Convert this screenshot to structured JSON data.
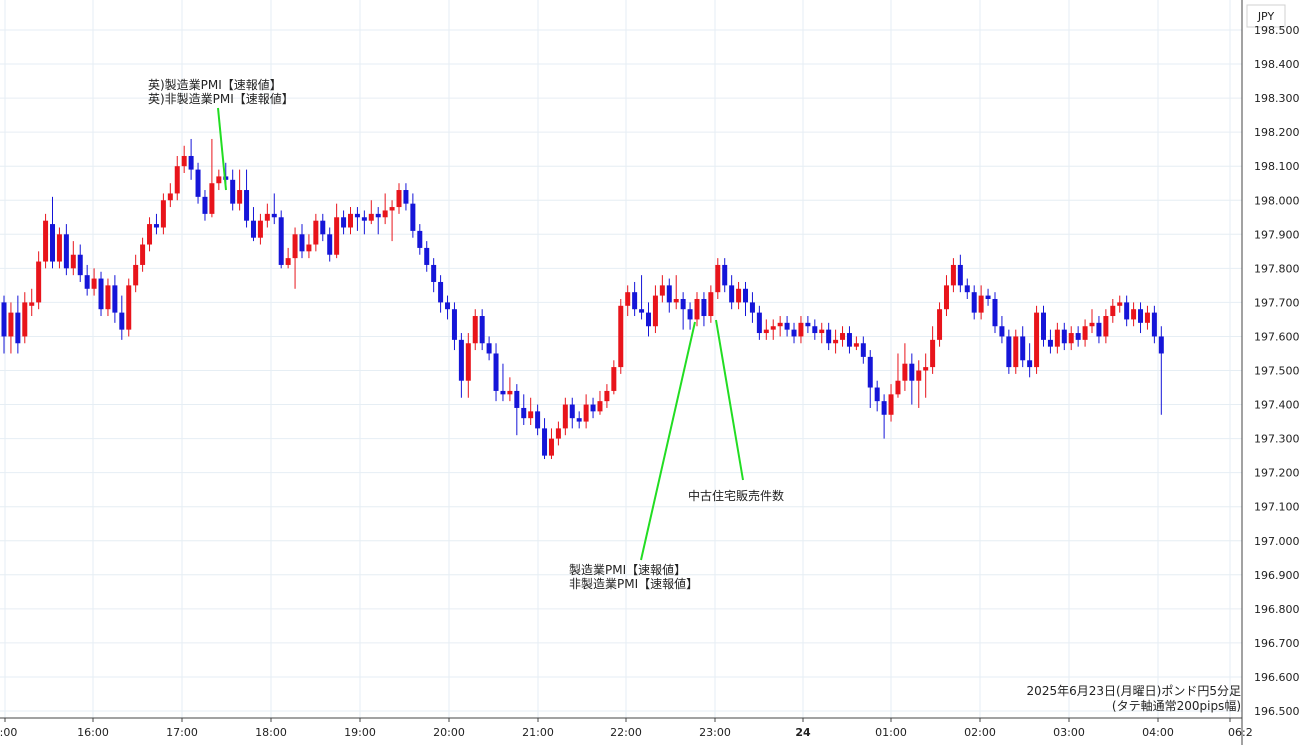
{
  "chart_data": {
    "type": "candlestick",
    "currency_label": "JPY",
    "ylim": [
      196.5,
      198.55
    ],
    "y_ticks": [
      "198.500",
      "198.400",
      "198.300",
      "198.200",
      "198.100",
      "198.000",
      "197.900",
      "197.800",
      "197.700",
      "197.600",
      "197.500",
      "197.400",
      "197.300",
      "197.200",
      "197.100",
      "197.000",
      "196.900",
      "196.800",
      "196.700",
      "196.600",
      "196.500"
    ],
    "x_ticks": [
      "5:00",
      "16:00",
      "17:00",
      "18:00",
      "19:00",
      "20:00",
      "21:00",
      "22:00",
      "23:00",
      "24",
      "01:00",
      "02:00",
      "03:00",
      "04:00",
      "06:2"
    ],
    "colors": {
      "up": "#e8141b",
      "down": "#1515d8",
      "annotation_line": "#22dd22",
      "grid": "#e6eef4",
      "axis": "#444444"
    },
    "candles": [
      [
        197.7,
        197.6,
        197.72,
        197.55
      ],
      [
        197.6,
        197.67,
        197.7,
        197.55
      ],
      [
        197.67,
        197.58,
        197.72,
        197.55
      ],
      [
        197.6,
        197.7,
        197.73,
        197.58
      ],
      [
        197.69,
        197.7,
        197.74,
        197.66
      ],
      [
        197.7,
        197.82,
        197.85,
        197.68
      ],
      [
        197.82,
        197.94,
        197.96,
        197.8
      ],
      [
        197.93,
        197.82,
        198.01,
        197.8
      ],
      [
        197.82,
        197.9,
        197.92,
        197.8
      ],
      [
        197.9,
        197.8,
        197.93,
        197.78
      ],
      [
        197.8,
        197.84,
        197.88,
        197.78
      ],
      [
        197.84,
        197.78,
        197.87,
        197.76
      ],
      [
        197.78,
        197.74,
        197.81,
        197.72
      ],
      [
        197.74,
        197.77,
        197.8,
        197.72
      ],
      [
        197.77,
        197.68,
        197.79,
        197.66
      ],
      [
        197.68,
        197.75,
        197.77,
        197.66
      ],
      [
        197.75,
        197.67,
        197.78,
        197.64
      ],
      [
        197.67,
        197.62,
        197.72,
        197.59
      ],
      [
        197.62,
        197.75,
        197.77,
        197.6
      ],
      [
        197.75,
        197.81,
        197.84,
        197.73
      ],
      [
        197.81,
        197.87,
        197.89,
        197.79
      ],
      [
        197.87,
        197.93,
        197.95,
        197.85
      ],
      [
        197.93,
        197.92,
        197.96,
        197.9
      ],
      [
        197.92,
        198.0,
        198.02,
        197.9
      ],
      [
        198.0,
        198.02,
        198.05,
        197.98
      ],
      [
        198.02,
        198.1,
        198.13,
        198.0
      ],
      [
        198.1,
        198.13,
        198.16,
        198.08
      ],
      [
        198.13,
        198.09,
        198.18,
        198.06
      ],
      [
        198.09,
        198.01,
        198.11,
        197.99
      ],
      [
        198.01,
        197.96,
        198.03,
        197.94
      ],
      [
        197.96,
        198.05,
        198.18,
        197.95
      ],
      [
        198.05,
        198.07,
        198.09,
        198.03
      ],
      [
        198.07,
        198.06,
        198.11,
        198.04
      ],
      [
        198.06,
        197.99,
        198.09,
        197.97
      ],
      [
        197.99,
        198.03,
        198.09,
        197.97
      ],
      [
        198.03,
        197.94,
        198.09,
        197.92
      ],
      [
        197.94,
        197.89,
        197.98,
        197.88
      ],
      [
        197.89,
        197.94,
        197.96,
        197.87
      ],
      [
        197.94,
        197.96,
        197.99,
        197.92
      ],
      [
        197.96,
        197.95,
        198.02,
        197.93
      ],
      [
        197.95,
        197.81,
        197.97,
        197.8
      ],
      [
        197.81,
        197.83,
        197.86,
        197.8
      ],
      [
        197.83,
        197.9,
        197.92,
        197.74
      ],
      [
        197.9,
        197.85,
        197.93,
        197.83
      ],
      [
        197.85,
        197.87,
        197.9,
        197.83
      ],
      [
        197.87,
        197.94,
        197.96,
        197.85
      ],
      [
        197.94,
        197.9,
        197.96,
        197.88
      ],
      [
        197.9,
        197.84,
        197.92,
        197.82
      ],
      [
        197.84,
        197.95,
        197.99,
        197.83
      ],
      [
        197.95,
        197.92,
        197.97,
        197.9
      ],
      [
        197.92,
        197.96,
        197.98,
        197.9
      ],
      [
        197.96,
        197.95,
        197.98,
        197.91
      ],
      [
        197.95,
        197.94,
        197.97,
        197.9
      ],
      [
        197.94,
        197.96,
        198.0,
        197.93
      ],
      [
        197.96,
        197.95,
        197.98,
        197.9
      ],
      [
        197.95,
        197.97,
        198.02,
        197.93
      ],
      [
        197.97,
        197.98,
        198.0,
        197.88
      ],
      [
        197.98,
        198.03,
        198.05,
        197.96
      ],
      [
        198.03,
        197.99,
        198.05,
        197.97
      ],
      [
        197.99,
        197.91,
        198.02,
        197.89
      ],
      [
        197.91,
        197.86,
        197.93,
        197.84
      ],
      [
        197.86,
        197.81,
        197.88,
        197.79
      ],
      [
        197.81,
        197.76,
        197.83,
        197.73
      ],
      [
        197.76,
        197.7,
        197.78,
        197.67
      ],
      [
        197.7,
        197.68,
        197.72,
        197.65
      ],
      [
        197.68,
        197.59,
        197.7,
        197.56
      ],
      [
        197.59,
        197.47,
        197.61,
        197.42
      ],
      [
        197.47,
        197.58,
        197.61,
        197.42
      ],
      [
        197.58,
        197.66,
        197.68,
        197.56
      ],
      [
        197.66,
        197.58,
        197.68,
        197.56
      ],
      [
        197.58,
        197.55,
        197.6,
        197.53
      ],
      [
        197.55,
        197.44,
        197.58,
        197.41
      ],
      [
        197.44,
        197.43,
        197.52,
        197.41
      ],
      [
        197.43,
        197.44,
        197.48,
        197.41
      ],
      [
        197.44,
        197.39,
        197.46,
        197.31
      ],
      [
        197.39,
        197.36,
        197.43,
        197.34
      ],
      [
        197.36,
        197.38,
        197.42,
        197.34
      ],
      [
        197.38,
        197.33,
        197.4,
        197.31
      ],
      [
        197.33,
        197.25,
        197.36,
        197.24
      ],
      [
        197.25,
        197.3,
        197.33,
        197.24
      ],
      [
        197.3,
        197.33,
        197.35,
        197.28
      ],
      [
        197.33,
        197.4,
        197.42,
        197.31
      ],
      [
        197.4,
        197.36,
        197.42,
        197.33
      ],
      [
        197.36,
        197.35,
        197.38,
        197.33
      ],
      [
        197.35,
        197.4,
        197.43,
        197.33
      ],
      [
        197.4,
        197.38,
        197.42,
        197.36
      ],
      [
        197.38,
        197.41,
        197.44,
        197.37
      ],
      [
        197.41,
        197.44,
        197.46,
        197.39
      ],
      [
        197.44,
        197.51,
        197.53,
        197.43
      ],
      [
        197.51,
        197.69,
        197.71,
        197.49
      ],
      [
        197.69,
        197.73,
        197.75,
        197.66
      ],
      [
        197.73,
        197.68,
        197.76,
        197.66
      ],
      [
        197.68,
        197.67,
        197.78,
        197.65
      ],
      [
        197.67,
        197.63,
        197.7,
        197.6
      ],
      [
        197.63,
        197.72,
        197.75,
        197.61
      ],
      [
        197.72,
        197.75,
        197.78,
        197.7
      ],
      [
        197.75,
        197.7,
        197.77,
        197.67
      ],
      [
        197.7,
        197.71,
        197.78,
        197.68
      ],
      [
        197.71,
        197.68,
        197.73,
        197.62
      ],
      [
        197.68,
        197.65,
        197.7,
        197.62
      ],
      [
        197.65,
        197.71,
        197.73,
        197.63
      ],
      [
        197.71,
        197.66,
        197.73,
        197.63
      ],
      [
        197.66,
        197.73,
        197.75,
        197.64
      ],
      [
        197.73,
        197.81,
        197.83,
        197.71
      ],
      [
        197.81,
        197.75,
        197.83,
        197.73
      ],
      [
        197.75,
        197.7,
        197.78,
        197.68
      ],
      [
        197.7,
        197.74,
        197.76,
        197.68
      ],
      [
        197.74,
        197.7,
        197.76,
        197.66
      ],
      [
        197.7,
        197.67,
        197.73,
        197.64
      ],
      [
        197.67,
        197.61,
        197.69,
        197.59
      ],
      [
        197.61,
        197.62,
        197.65,
        197.59
      ],
      [
        197.62,
        197.63,
        197.65,
        197.59
      ],
      [
        197.63,
        197.64,
        197.66,
        197.6
      ],
      [
        197.64,
        197.62,
        197.66,
        197.6
      ],
      [
        197.62,
        197.6,
        197.64,
        197.58
      ],
      [
        197.6,
        197.64,
        197.66,
        197.58
      ],
      [
        197.64,
        197.63,
        197.66,
        197.61
      ],
      [
        197.63,
        197.61,
        197.65,
        197.59
      ],
      [
        197.61,
        197.62,
        197.64,
        197.58
      ],
      [
        197.62,
        197.58,
        197.64,
        197.56
      ],
      [
        197.58,
        197.59,
        197.62,
        197.55
      ],
      [
        197.59,
        197.61,
        197.63,
        197.57
      ],
      [
        197.61,
        197.57,
        197.63,
        197.55
      ],
      [
        197.57,
        197.58,
        197.6,
        197.56
      ],
      [
        197.58,
        197.54,
        197.6,
        197.52
      ],
      [
        197.54,
        197.45,
        197.56,
        197.39
      ],
      [
        197.45,
        197.41,
        197.47,
        197.38
      ],
      [
        197.41,
        197.37,
        197.43,
        197.3
      ],
      [
        197.37,
        197.43,
        197.46,
        197.35
      ],
      [
        197.43,
        197.47,
        197.55,
        197.42
      ],
      [
        197.47,
        197.52,
        197.58,
        197.44
      ],
      [
        197.52,
        197.47,
        197.55,
        197.4
      ],
      [
        197.47,
        197.5,
        197.53,
        197.39
      ],
      [
        197.5,
        197.51,
        197.55,
        197.42
      ],
      [
        197.51,
        197.59,
        197.63,
        197.49
      ],
      [
        197.59,
        197.68,
        197.7,
        197.57
      ],
      [
        197.68,
        197.75,
        197.78,
        197.66
      ],
      [
        197.75,
        197.81,
        197.83,
        197.73
      ],
      [
        197.81,
        197.75,
        197.84,
        197.73
      ],
      [
        197.75,
        197.73,
        197.77,
        197.71
      ],
      [
        197.73,
        197.67,
        197.75,
        197.65
      ],
      [
        197.67,
        197.72,
        197.75,
        197.65
      ],
      [
        197.72,
        197.71,
        197.74,
        197.69
      ],
      [
        197.71,
        197.63,
        197.73,
        197.61
      ],
      [
        197.63,
        197.6,
        197.66,
        197.58
      ],
      [
        197.6,
        197.51,
        197.62,
        197.49
      ],
      [
        197.51,
        197.6,
        197.62,
        197.49
      ],
      [
        197.6,
        197.53,
        197.63,
        197.51
      ],
      [
        197.53,
        197.51,
        197.58,
        197.48
      ],
      [
        197.51,
        197.67,
        197.69,
        197.49
      ],
      [
        197.67,
        197.59,
        197.69,
        197.57
      ],
      [
        197.59,
        197.57,
        197.62,
        197.55
      ],
      [
        197.57,
        197.62,
        197.64,
        197.55
      ],
      [
        197.62,
        197.58,
        197.64,
        197.56
      ],
      [
        197.58,
        197.61,
        197.63,
        197.56
      ],
      [
        197.61,
        197.59,
        197.63,
        197.57
      ],
      [
        197.59,
        197.63,
        197.65,
        197.57
      ],
      [
        197.63,
        197.64,
        197.68,
        197.61
      ],
      [
        197.64,
        197.6,
        197.66,
        197.58
      ],
      [
        197.6,
        197.66,
        197.68,
        197.58
      ],
      [
        197.66,
        197.69,
        197.71,
        197.64
      ],
      [
        197.69,
        197.7,
        197.72,
        197.67
      ],
      [
        197.7,
        197.65,
        197.72,
        197.63
      ],
      [
        197.65,
        197.68,
        197.7,
        197.63
      ],
      [
        197.68,
        197.64,
        197.7,
        197.61
      ],
      [
        197.64,
        197.67,
        197.69,
        197.62
      ],
      [
        197.67,
        197.6,
        197.69,
        197.58
      ],
      [
        197.6,
        197.55,
        197.63,
        197.37
      ]
    ],
    "annotations": [
      {
        "lines": [
          "英)製造業PMI【速報値】",
          "英)非製造業PMI【速報値】"
        ],
        "at_candle": 31
      },
      {
        "lines": [
          "中古住宅販売件数"
        ],
        "at_candle": 95
      },
      {
        "lines": [
          "製造業PMI【速報値】",
          "非製造業PMI【速報値】"
        ],
        "at_candle": 91
      }
    ],
    "note": [
      "2025年6月23日(月曜日)ポンド円5分足",
      "(タテ軸通常200pips幅)"
    ]
  }
}
